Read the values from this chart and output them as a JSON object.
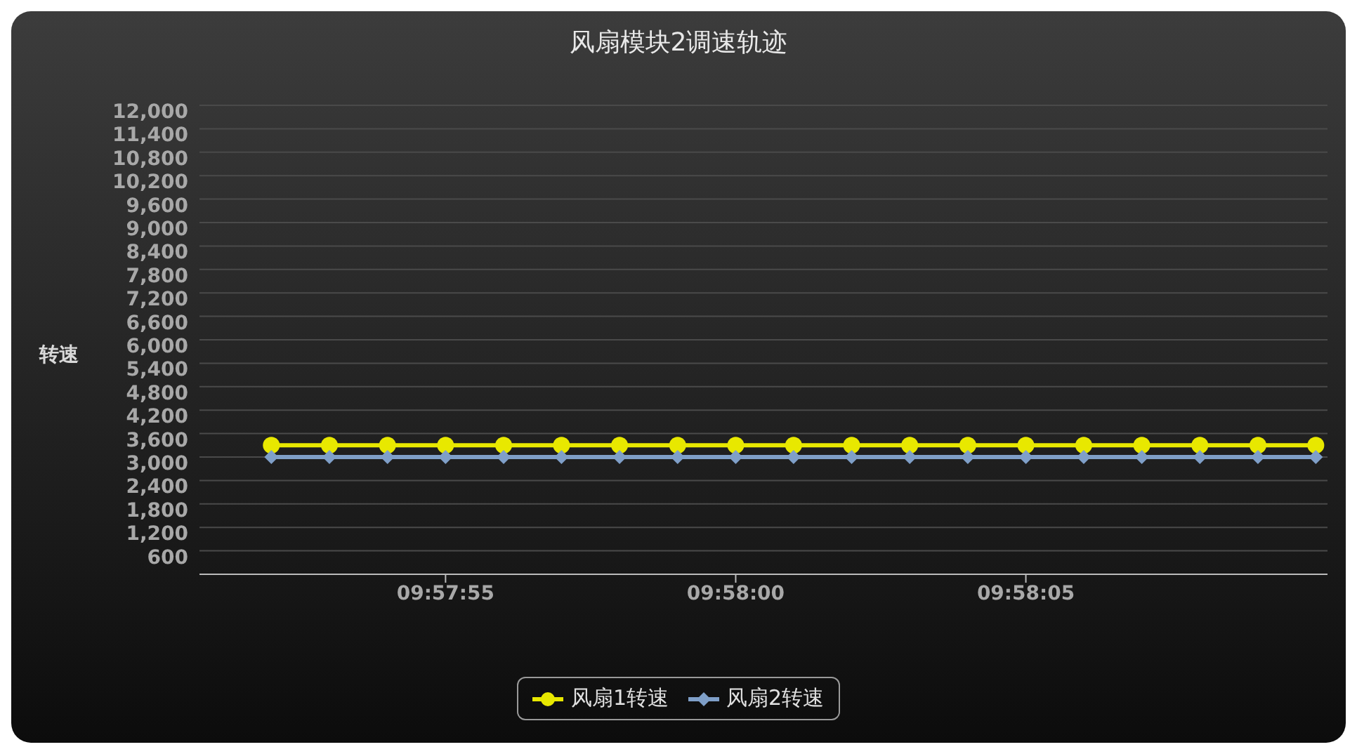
{
  "chart_data": {
    "type": "line",
    "title": "风扇模块2调速轨迹",
    "ylabel": "转速",
    "x": [
      9.964444,
      9.964722,
      9.965,
      9.965278,
      9.965556,
      9.965833,
      9.966111,
      9.966389,
      9.966667,
      9.966944,
      9.967222,
      9.9675,
      9.967778,
      9.968056,
      9.968333,
      9.968611,
      9.968889,
      9.969167,
      9.969444
    ],
    "series": [
      {
        "name": "风扇1转速",
        "color": "#e8e800",
        "marker": "circle",
        "values": [
          3300,
          3300,
          3300,
          3300,
          3300,
          3300,
          3300,
          3300,
          3300,
          3300,
          3300,
          3300,
          3300,
          3300,
          3300,
          3300,
          3300,
          3300,
          3300
        ]
      },
      {
        "name": "风扇2转速",
        "color": "#7f9fc8",
        "marker": "diamond",
        "values": [
          3000,
          3000,
          3000,
          3000,
          3000,
          3000,
          3000,
          3000,
          3000,
          3000,
          3000,
          3000,
          3000,
          3000,
          3000,
          3000,
          3000,
          3000,
          3000
        ]
      }
    ],
    "xlim": [
      9.9641,
      9.9695
    ],
    "xticks": [
      {
        "value": 9.965278,
        "label": "09:57:55"
      },
      {
        "value": 9.966667,
        "label": "09:58:00"
      },
      {
        "value": 9.968056,
        "label": "09:58:05"
      }
    ],
    "ylim": [
      0,
      12000
    ],
    "yticks": [
      {
        "value": 600,
        "label": "600"
      },
      {
        "value": 1200,
        "label": "1,200"
      },
      {
        "value": 1800,
        "label": "1,800"
      },
      {
        "value": 2400,
        "label": "2,400"
      },
      {
        "value": 3000,
        "label": "3,000"
      },
      {
        "value": 3600,
        "label": "3,600"
      },
      {
        "value": 4200,
        "label": "4,200"
      },
      {
        "value": 4800,
        "label": "4,800"
      },
      {
        "value": 5400,
        "label": "5,400"
      },
      {
        "value": 6000,
        "label": "6,000"
      },
      {
        "value": 6600,
        "label": "6,600"
      },
      {
        "value": 7200,
        "label": "7,200"
      },
      {
        "value": 7800,
        "label": "7,800"
      },
      {
        "value": 8400,
        "label": "8,400"
      },
      {
        "value": 9000,
        "label": "9,000"
      },
      {
        "value": 9600,
        "label": "9,600"
      },
      {
        "value": 10200,
        "label": "10,200"
      },
      {
        "value": 10800,
        "label": "10,800"
      },
      {
        "value": 11400,
        "label": "11,400"
      },
      {
        "value": 12000,
        "label": "12,000"
      }
    ],
    "grid": "y",
    "legend": "bottom"
  }
}
